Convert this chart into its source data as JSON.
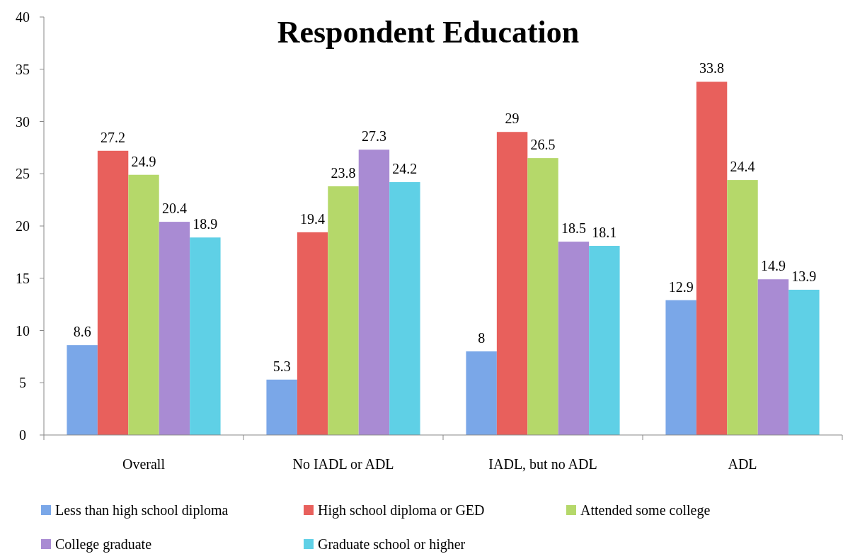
{
  "chart_data": {
    "type": "bar",
    "title": "Respondent Education",
    "categories": [
      "Overall",
      "No IADL or ADL",
      "IADL, but no ADL",
      "ADL"
    ],
    "series": [
      {
        "name": "Less than high school diploma",
        "color": "#7aa7e8",
        "values": [
          8.6,
          5.3,
          8,
          12.9
        ]
      },
      {
        "name": "High school diploma or GED",
        "color": "#e8605c",
        "values": [
          27.2,
          19.4,
          29,
          33.8
        ]
      },
      {
        "name": "Attended some college",
        "color": "#b5d86a",
        "values": [
          24.9,
          23.8,
          26.5,
          24.4
        ]
      },
      {
        "name": "College graduate",
        "color": "#a98bd3",
        "values": [
          20.4,
          27.3,
          18.5,
          14.9
        ]
      },
      {
        "name": "Graduate school or higher",
        "color": "#5fd0e6",
        "values": [
          18.9,
          24.2,
          18.1,
          13.9
        ]
      }
    ],
    "ylim": [
      0,
      40
    ],
    "yticks": [
      0,
      5,
      10,
      15,
      20,
      25,
      30,
      35,
      40
    ],
    "data_labels": true,
    "grid": false,
    "legend": "bottom"
  }
}
